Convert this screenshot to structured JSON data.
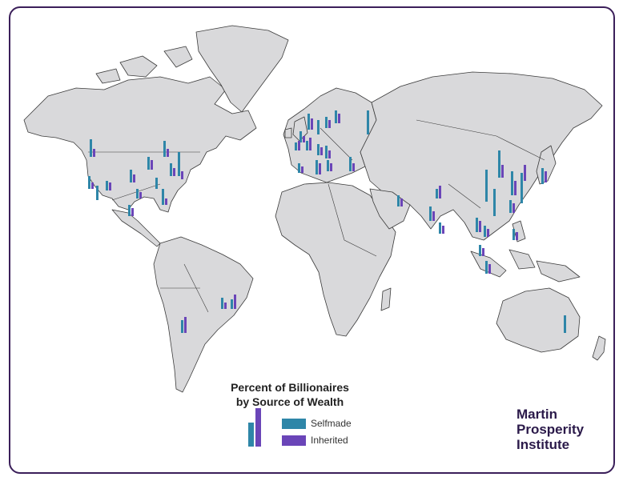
{
  "legend": {
    "title_line1": "Percent of Billionaires",
    "title_line2": "by Source of Wealth",
    "items": [
      {
        "label": "Selfmade",
        "color": "#2e86a8"
      },
      {
        "label": "Inherited",
        "color": "#6a45b8"
      }
    ]
  },
  "brand": {
    "line1": "Martin",
    "line2": "Prosperity",
    "line3": "Institute"
  },
  "colors": {
    "selfmade": "#2e86a8",
    "inherited": "#6a45b8",
    "land": "#d9d9db",
    "frame": "#3b1f5a"
  }
}
